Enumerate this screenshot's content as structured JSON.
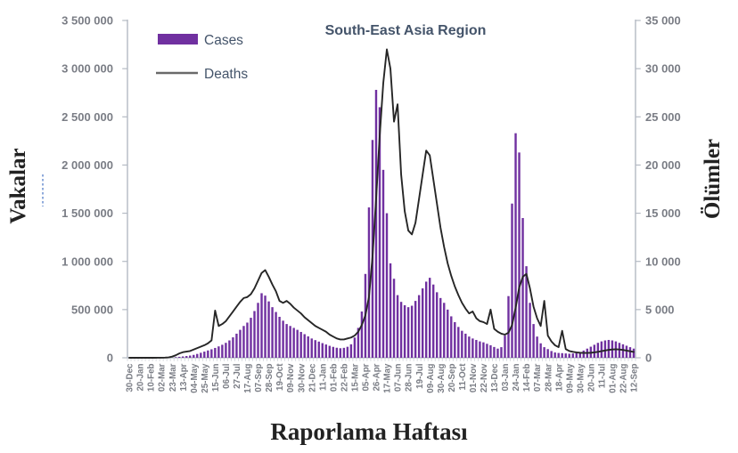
{
  "title": "South-East Asia Region",
  "legend": {
    "cases_label": "Cases",
    "deaths_label": "Deaths",
    "position": "top-left"
  },
  "axes": {
    "left_title": "Vakalar",
    "right_title": "Ölümler",
    "x_title": "Raporlama Haftası",
    "left_tick_labels": [
      "0",
      "500 000",
      "1 000 000",
      "1 500 000",
      "2 000 000",
      "2 500 000",
      "3 000 000",
      "3 500 000"
    ],
    "right_tick_labels": [
      "0",
      "5 000",
      "10 000",
      "15 000",
      "20 000",
      "25 000",
      "30 000",
      "35 000"
    ]
  },
  "colors": {
    "bars": "#7030A0",
    "deaths_line": "#262626",
    "legend_line_swatch": "#6a6a6a",
    "title_text": "#44546A",
    "tick_text": "#7a7d85",
    "axis_line": "#b4bac3",
    "minor_tick": "#cdd1d7",
    "artifact_dash": "#4472C4"
  },
  "chart_data": {
    "type": "combo",
    "title": "South-East Asia Region",
    "xlabel": "Raporlama Haftası",
    "ylabel_left": "Vakalar",
    "ylabel_right": "Ölümler",
    "left_ylim": [
      0,
      3500000
    ],
    "right_ylim": [
      0,
      35000
    ],
    "grid": false,
    "legend_position": "top-left-inside",
    "x_tick_every_n_points": 3,
    "x_tick_labels": [
      "30-Dec",
      "20-Jan",
      "10-Feb",
      "02-Mar",
      "23-Mar",
      "13-Apr",
      "04-May",
      "25-May",
      "15-Jun",
      "06-Jul",
      "27-Jul",
      "17-Aug",
      "07-Sep",
      "28-Sep",
      "19-Oct",
      "09-Nov",
      "30-Nov",
      "21-Dec",
      "11-Jan",
      "01-Feb",
      "22-Feb",
      "15-Mar",
      "05-Apr",
      "26-Apr",
      "17-May",
      "07-Jun",
      "28-Jun",
      "19-Jul",
      "09-Aug",
      "30-Aug",
      "20-Sep",
      "11-Oct",
      "01-Nov",
      "22-Nov",
      "13-Dec",
      "03-Jan",
      "24-Jan",
      "14-Feb",
      "07-Mar",
      "28-Mar",
      "18-Apr",
      "09-May",
      "30-May",
      "20-Jun",
      "11-Jul",
      "01-Aug",
      "22-Aug",
      "12-Sep"
    ],
    "series": [
      {
        "name": "Cases",
        "type": "bar",
        "axis": "left",
        "color": "#7030A0",
        "values": [
          0,
          0,
          1,
          3,
          6,
          9,
          9,
          7,
          8,
          40,
          250,
          900,
          2500,
          6000,
          10000,
          14000,
          18000,
          23000,
          30000,
          40000,
          52000,
          64000,
          76000,
          88000,
          102000,
          118000,
          135000,
          155000,
          180000,
          212000,
          250000,
          290000,
          330000,
          365000,
          415000,
          485000,
          570000,
          670000,
          645000,
          585000,
          525000,
          475000,
          425000,
          385000,
          350000,
          330000,
          310000,
          290000,
          268000,
          245000,
          222000,
          200000,
          183000,
          168000,
          152000,
          138000,
          124000,
          113000,
          104000,
          99000,
          103000,
          114000,
          140000,
          210000,
          310000,
          480000,
          870000,
          1560000,
          2260000,
          2780000,
          2600000,
          1950000,
          1500000,
          980000,
          820000,
          650000,
          580000,
          545000,
          525000,
          540000,
          590000,
          650000,
          720000,
          790000,
          830000,
          760000,
          680000,
          620000,
          570000,
          500000,
          430000,
          370000,
          320000,
          280000,
          250000,
          220000,
          200000,
          185000,
          170000,
          160000,
          145000,
          130000,
          112000,
          95000,
          110000,
          230000,
          640000,
          1600000,
          2330000,
          2130000,
          1450000,
          950000,
          570000,
          350000,
          220000,
          150000,
          110000,
          90000,
          70000,
          55000,
          50000,
          48000,
          45000,
          42000,
          45000,
          50000,
          60000,
          75000,
          95000,
          115000,
          135000,
          155000,
          170000,
          180000,
          185000,
          180000,
          170000,
          155000,
          140000,
          125000,
          110000,
          95000
        ]
      },
      {
        "name": "Deaths",
        "type": "line",
        "axis": "right",
        "color": "#262626",
        "values": [
          0,
          0,
          0,
          0,
          0,
          1,
          1,
          1,
          2,
          5,
          15,
          45,
          120,
          260,
          450,
          580,
          640,
          700,
          850,
          1000,
          1150,
          1300,
          1500,
          1800,
          4900,
          3300,
          3500,
          3800,
          4300,
          4800,
          5300,
          5800,
          6200,
          6300,
          6600,
          7200,
          8000,
          8800,
          9100,
          8400,
          7600,
          6900,
          5900,
          5700,
          5900,
          5600,
          5200,
          4900,
          4600,
          4200,
          3900,
          3600,
          3300,
          3100,
          2900,
          2700,
          2400,
          2200,
          2000,
          1900,
          1900,
          2000,
          2100,
          2300,
          2700,
          3400,
          4400,
          6300,
          10500,
          16500,
          23000,
          28500,
          32000,
          30000,
          24500,
          26300,
          19000,
          15200,
          13200,
          12800,
          14000,
          16500,
          19000,
          21500,
          21000,
          18500,
          16000,
          13500,
          11500,
          9800,
          8500,
          7400,
          6500,
          5700,
          5100,
          4600,
          4800,
          4100,
          3800,
          3700,
          3500,
          5000,
          3000,
          2700,
          2500,
          2400,
          2600,
          3400,
          5200,
          7300,
          8400,
          8700,
          7200,
          5300,
          4100,
          3300,
          5900,
          2300,
          1700,
          1300,
          1100,
          2800,
          900,
          700,
          620,
          560,
          520,
          500,
          500,
          520,
          560,
          620,
          690,
          760,
          820,
          860,
          880,
          860,
          810,
          750,
          680,
          610
        ]
      }
    ]
  }
}
